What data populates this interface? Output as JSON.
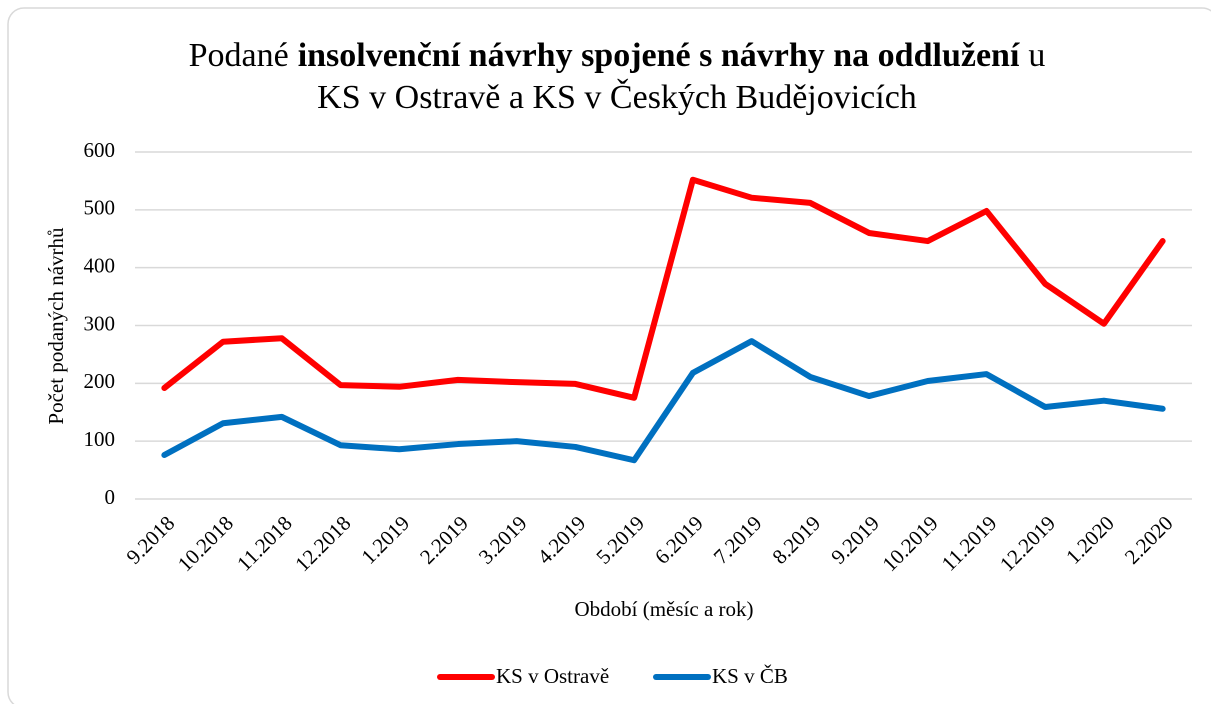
{
  "chart_data": {
    "type": "line",
    "title": [
      "Podané",
      "insolvenční návrhy spojené s návrhy na oddlužení",
      "u",
      "KS v Ostravě a KS v Českých Budějovicích"
    ],
    "title_bold": [
      false,
      true,
      false,
      false
    ],
    "x_label": "Období (měsíc a rok)",
    "y_label": "Počet podaných návrhů",
    "categories": [
      "9.2018",
      "10.2018",
      "11.2018",
      "12.2018",
      "1.2019",
      "2.2019",
      "3.2019",
      "4.2019",
      "5.2019",
      "6.2019",
      "7.2019",
      "8.2019",
      "9.2019",
      "10.2019",
      "11.2019",
      "12.2019",
      "1.2020",
      "2.2020"
    ],
    "series": [
      {
        "name": "KS v Ostravě",
        "color": "#ff0000",
        "values": [
          192,
          272,
          278,
          197,
          194,
          206,
          202,
          199,
          175,
          552,
          521,
          512,
          460,
          446,
          498,
          372,
          303,
          446
        ]
      },
      {
        "name": "KS v ČB",
        "color": "#0070c0",
        "values": [
          76,
          131,
          142,
          93,
          86,
          95,
          100,
          90,
          67,
          218,
          273,
          211,
          178,
          204,
          216,
          159,
          170,
          156
        ]
      }
    ],
    "ylim": [
      0,
      600
    ],
    "yticks": [
      0,
      100,
      200,
      300,
      400,
      500,
      600
    ],
    "grid": true,
    "legend": "bottom"
  }
}
